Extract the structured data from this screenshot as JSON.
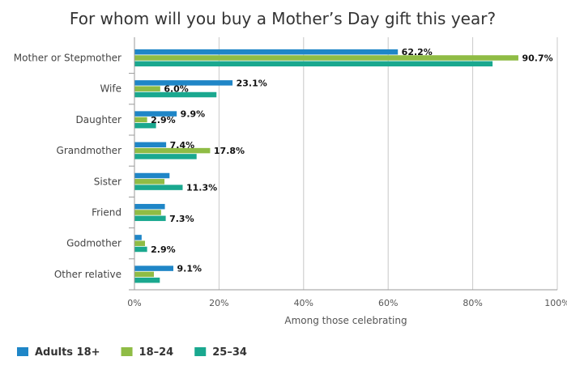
{
  "chart_data": {
    "type": "bar",
    "orientation": "horizontal",
    "title": "For whom will you buy a Mother’s Day gift this year?",
    "xlabel": "Among those celebrating",
    "ylabel": "",
    "xlim": [
      0,
      100
    ],
    "x_ticks": [
      "0%",
      "20%",
      "40%",
      "60%",
      "80%",
      "100%"
    ],
    "grid": "vertical",
    "legend_position": "bottom-left",
    "categories": [
      "Mother or Stepmother",
      "Wife",
      "Daughter",
      "Grandmother",
      "Sister",
      "Friend",
      "Godmother",
      "Other relative"
    ],
    "series": [
      {
        "name": "Adults 18+",
        "color": "#1f86c7",
        "values": [
          62.2,
          23.1,
          9.9,
          7.4,
          8.2,
          7.1,
          1.6,
          9.1
        ],
        "labels": [
          "62.2%",
          "23.1%",
          "9.9%",
          "7.4%",
          "",
          "",
          "",
          "9.1%"
        ]
      },
      {
        "name": "18–24",
        "color": "#8fbc45",
        "values": [
          90.7,
          6.0,
          2.9,
          17.8,
          7.0,
          6.2,
          2.4,
          4.5
        ],
        "labels": [
          "90.7%",
          "6.0%",
          "2.9%",
          "17.8%",
          "",
          "",
          "",
          ""
        ]
      },
      {
        "name": "25–34",
        "color": "#1aa88f",
        "values": [
          84.6,
          19.3,
          5.0,
          14.6,
          11.3,
          7.3,
          2.9,
          5.9
        ],
        "labels": [
          "",
          "",
          "",
          "",
          "11.3%",
          "7.3%",
          "2.9%",
          ""
        ]
      }
    ]
  }
}
